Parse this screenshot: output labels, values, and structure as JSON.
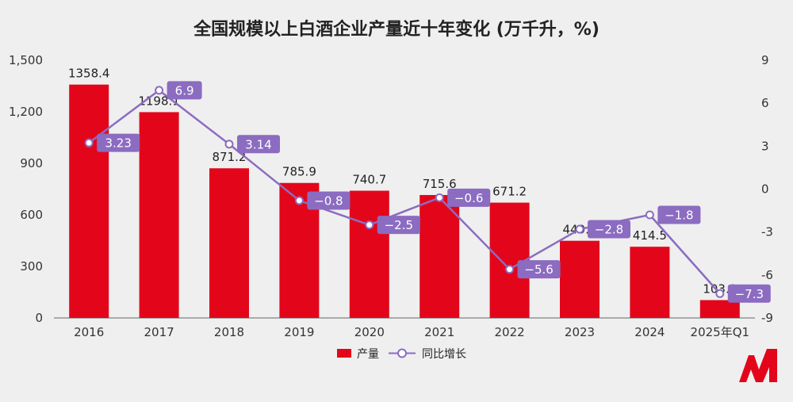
{
  "chart_data": {
    "type": "bar",
    "title": "全国规模以上白酒企业产量近十年变化 (万千升，%)",
    "categories": [
      "2016",
      "2017",
      "2018",
      "2019",
      "2020",
      "2021",
      "2022",
      "2023",
      "2024",
      "2025年Q1"
    ],
    "left_axis": {
      "ticks": [
        "0",
        "300",
        "600",
        "900",
        "1,200",
        "1,500"
      ],
      "range": [
        0,
        1500
      ]
    },
    "right_axis": {
      "ticks": [
        "-9",
        "-6",
        "-3",
        "0",
        "3",
        "6",
        "9"
      ],
      "range": [
        -9,
        9
      ]
    },
    "series": [
      {
        "name": "产量",
        "type": "bar",
        "axis": "left",
        "values": [
          1358.4,
          1198.1,
          871.2,
          785.9,
          740.7,
          715.6,
          671.2,
          449.2,
          414.5,
          103.9
        ],
        "labels": [
          "1358.4",
          "1198.1",
          "871.2",
          "785.9",
          "740.7",
          "715.6",
          "671.2",
          "449.2",
          "414.5",
          "103.9"
        ]
      },
      {
        "name": "同比增长",
        "type": "line",
        "axis": "right",
        "values": [
          3.23,
          6.9,
          3.14,
          -0.8,
          -2.5,
          -0.6,
          -5.6,
          -2.8,
          -1.8,
          -7.3
        ],
        "labels": [
          "3.23",
          "6.9",
          "3.14",
          "−0.8",
          "−2.5",
          "−0.6",
          "−5.6",
          "−2.8",
          "−1.8",
          "−7.3"
        ]
      }
    ],
    "legend": {
      "position": "bottom",
      "items": [
        "产量",
        "同比增长"
      ]
    },
    "colors": {
      "bar": "#e3061b",
      "line": "#8b6cc1",
      "badge": "#8b6cc1",
      "logo": "#e3061b"
    },
    "grid": false
  }
}
